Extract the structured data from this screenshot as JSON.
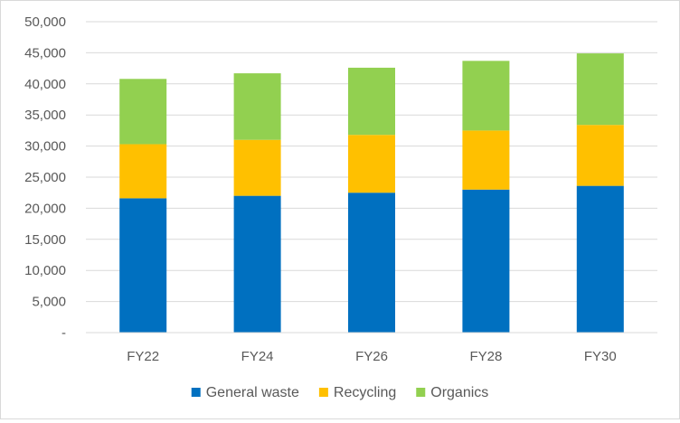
{
  "chart_data": {
    "type": "bar",
    "stacked": true,
    "categories": [
      "FY22",
      "FY24",
      "FY26",
      "FY28",
      "FY30"
    ],
    "series": [
      {
        "name": "General waste",
        "color": "#0070c0",
        "values": [
          21600,
          22000,
          22500,
          23000,
          23600
        ]
      },
      {
        "name": "Recycling",
        "color": "#ffc000",
        "values": [
          8700,
          9000,
          9300,
          9500,
          9800
        ]
      },
      {
        "name": "Organics",
        "color": "#92d050",
        "values": [
          10500,
          10700,
          10800,
          11200,
          11500
        ]
      }
    ],
    "y_ticks": [
      "-",
      "5,000",
      "10,000",
      "15,000",
      "20,000",
      "25,000",
      "30,000",
      "35,000",
      "40,000",
      "45,000",
      "50,000"
    ],
    "ylim": [
      0,
      50000
    ],
    "grid": true,
    "legend_position": "bottom",
    "title": "",
    "xlabel": "",
    "ylabel": ""
  }
}
